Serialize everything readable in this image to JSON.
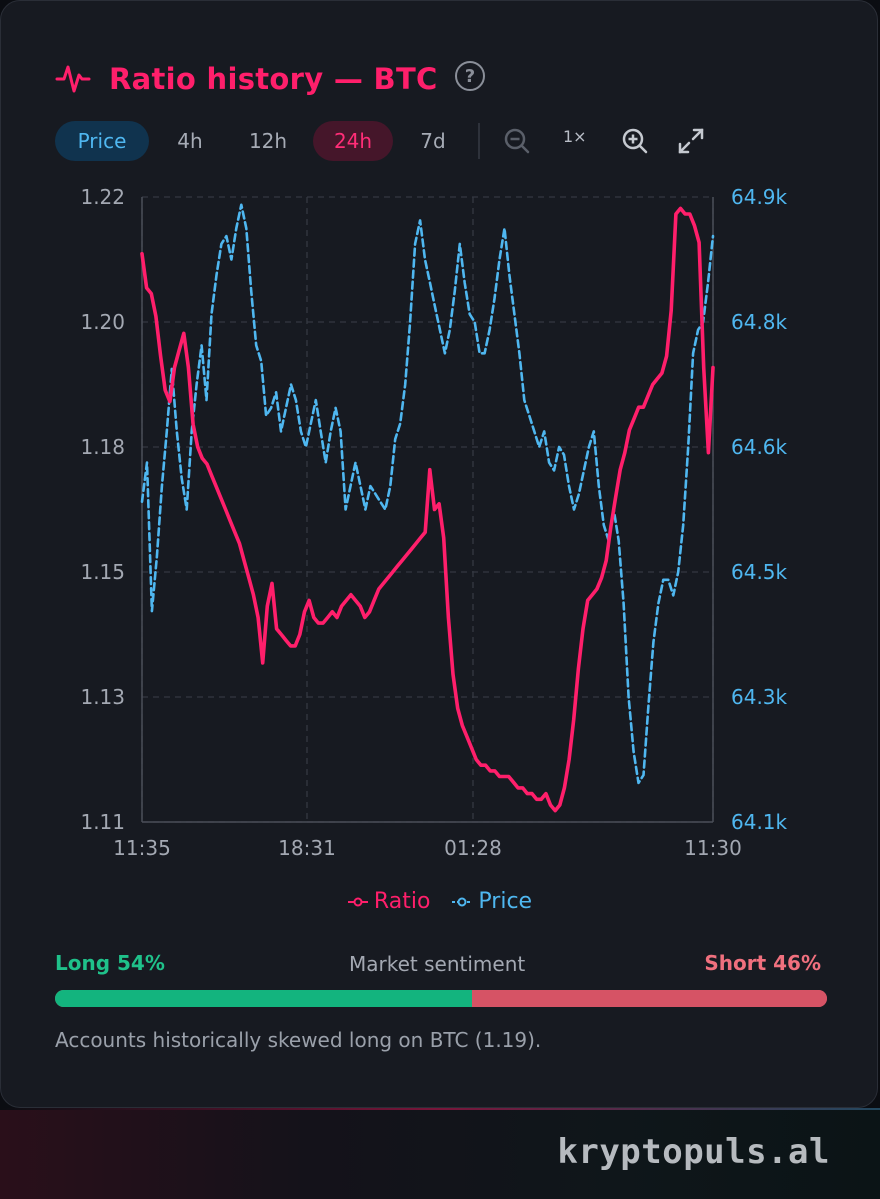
{
  "header": {
    "title": "Ratio history — BTC",
    "title_icon": "activity-pulse-icon",
    "help_icon": "?"
  },
  "toolbar": {
    "price_label": "Price",
    "h4_label": "4h",
    "h12_label": "12h",
    "h24_label": "24h",
    "d7_label": "7d",
    "zoom_level": "1×",
    "active_range": "24h",
    "active_mode": "Price"
  },
  "chart_data": {
    "type": "line",
    "x_ticks": [
      "11:35",
      "18:31",
      "01:28",
      "11:30"
    ],
    "y_left_ticks": [
      "1.22",
      "1.20",
      "1.18",
      "1.15",
      "1.13",
      "1.11"
    ],
    "y_right_ticks": [
      "64.9k",
      "64.8k",
      "64.6k",
      "64.5k",
      "64.3k",
      "64.1k"
    ],
    "y_left_range": [
      1.11,
      1.22
    ],
    "y_right_range": [
      64.1,
      64.9
    ],
    "grid": true,
    "legend_position": "bottom",
    "series": [
      {
        "name": "Ratio",
        "axis": "left",
        "style": "solid",
        "color": "#ff1f6b",
        "values": [
          1.21,
          1.204,
          1.203,
          1.199,
          1.192,
          1.186,
          1.184,
          1.19,
          1.193,
          1.196,
          1.19,
          1.18,
          1.176,
          1.174,
          1.173,
          1.171,
          1.169,
          1.167,
          1.165,
          1.163,
          1.161,
          1.159,
          1.156,
          1.153,
          1.15,
          1.146,
          1.138,
          1.148,
          1.152,
          1.144,
          1.143,
          1.142,
          1.141,
          1.141,
          1.143,
          1.147,
          1.149,
          1.146,
          1.145,
          1.145,
          1.146,
          1.147,
          1.146,
          1.148,
          1.149,
          1.15,
          1.149,
          1.148,
          1.146,
          1.147,
          1.149,
          1.151,
          1.152,
          1.153,
          1.154,
          1.155,
          1.156,
          1.157,
          1.158,
          1.159,
          1.16,
          1.161,
          1.172,
          1.165,
          1.166,
          1.16,
          1.146,
          1.136,
          1.13,
          1.127,
          1.125,
          1.123,
          1.121,
          1.12,
          1.12,
          1.119,
          1.119,
          1.118,
          1.118,
          1.118,
          1.117,
          1.116,
          1.116,
          1.115,
          1.115,
          1.114,
          1.114,
          1.115,
          1.113,
          1.112,
          1.113,
          1.116,
          1.121,
          1.128,
          1.137,
          1.144,
          1.149,
          1.15,
          1.151,
          1.153,
          1.156,
          1.162,
          1.167,
          1.172,
          1.175,
          1.179,
          1.181,
          1.183,
          1.183,
          1.185,
          1.187,
          1.188,
          1.189,
          1.192,
          1.2,
          1.217,
          1.218,
          1.217,
          1.217,
          1.215,
          1.212,
          1.19,
          1.175,
          1.19
        ]
      },
      {
        "name": "Price",
        "axis": "right",
        "style": "dashed",
        "color": "#4fb7f0",
        "values": [
          64.51,
          64.56,
          64.37,
          64.44,
          64.53,
          64.6,
          64.68,
          64.6,
          64.54,
          64.5,
          64.6,
          64.66,
          64.71,
          64.64,
          64.75,
          64.8,
          64.84,
          64.85,
          64.82,
          64.86,
          64.89,
          64.86,
          64.78,
          64.71,
          64.69,
          64.62,
          64.63,
          64.65,
          64.6,
          64.63,
          64.66,
          64.64,
          64.6,
          64.58,
          64.61,
          64.64,
          64.6,
          64.56,
          64.6,
          64.63,
          64.6,
          64.5,
          64.53,
          64.56,
          64.53,
          64.5,
          64.53,
          64.52,
          64.51,
          64.5,
          64.53,
          64.59,
          64.61,
          64.66,
          64.74,
          64.84,
          64.87,
          64.82,
          64.79,
          64.76,
          64.73,
          64.7,
          64.73,
          64.78,
          64.84,
          64.79,
          64.75,
          64.74,
          64.7,
          64.7,
          64.73,
          64.77,
          64.82,
          64.86,
          64.8,
          64.75,
          64.7,
          64.64,
          64.62,
          64.6,
          64.58,
          64.6,
          64.56,
          64.55,
          64.58,
          64.57,
          64.53,
          64.5,
          64.52,
          64.55,
          64.58,
          64.6,
          64.53,
          64.48,
          64.46,
          64.5,
          64.46,
          64.38,
          64.26,
          64.19,
          64.15,
          64.16,
          64.25,
          64.33,
          64.38,
          64.41,
          64.41,
          64.39,
          64.42,
          64.48,
          64.58,
          64.7,
          64.73,
          64.74,
          64.79,
          64.85
        ]
      }
    ]
  },
  "legend": {
    "ratio_label": "Ratio",
    "price_label": "Price",
    "ratio_color": "#ff1f6b",
    "price_color": "#4fb7f0"
  },
  "sentiment": {
    "long_label": "Long 54%",
    "title": "Market sentiment",
    "short_label": "Short 46%",
    "long_fraction": 0.54,
    "short_fraction": 0.46
  },
  "note": "Accounts historically skewed long on BTC (1.19).",
  "footer": {
    "brand": "kryptopuls.al"
  }
}
